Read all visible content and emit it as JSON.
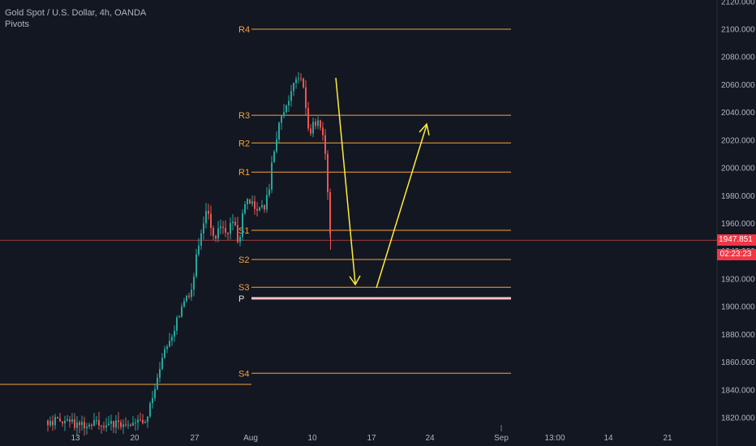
{
  "legend": {
    "symbol": "Gold Spot / U.S. Dollar, 4h, OANDA",
    "indicator": "Pivots"
  },
  "price_axis": {
    "ticks": [
      "2120.000",
      "2100.000",
      "2080.000",
      "2060.000",
      "2040.000",
      "2020.000",
      "2000.000",
      "1980.000",
      "1960.000",
      "1940.000",
      "1920.000",
      "1900.000",
      "1880.000",
      "1860.000",
      "1840.000",
      "1820.000"
    ],
    "current_price": "1947.851",
    "countdown": "02:23:23",
    "tag_color": "#f23645"
  },
  "time_axis": {
    "labels": [
      "13",
      "20",
      "27",
      "Aug",
      "10",
      "17",
      "24",
      "Sep",
      "13:00",
      "14",
      "21"
    ]
  },
  "colors": {
    "up": "#26a69a",
    "down": "#ef5350",
    "pivot_line": "#f7a23b",
    "pivot_label": "#f7a23b",
    "p_line": "#ffc0cb",
    "arrow": "#ffeb3b",
    "background": "#131722"
  },
  "chart_data": {
    "type": "candlestick",
    "symbol": "XAUUSD",
    "timeframe": "4h",
    "ylim": [
      1815,
      2125
    ],
    "pivots": [
      {
        "label": "R4",
        "value": 2100
      },
      {
        "label": "R3",
        "value": 2038
      },
      {
        "label": "R2",
        "value": 2018
      },
      {
        "label": "R1",
        "value": 1997
      },
      {
        "label": "S1",
        "value": 1955
      },
      {
        "label": "S2",
        "value": 1934
      },
      {
        "label": "S3",
        "value": 1914
      },
      {
        "label": "P",
        "value": 1906
      },
      {
        "label": "S4",
        "value": 1852
      }
    ],
    "previous_period_level": 1844,
    "current_price": 1947.851,
    "price_path": [
      [
        60,
        1818
      ],
      [
        85,
        1816
      ],
      [
        110,
        1815
      ],
      [
        130,
        1816
      ],
      [
        150,
        1815
      ],
      [
        165,
        1816
      ],
      [
        175,
        1818
      ],
      [
        182,
        1822
      ],
      [
        188,
        1838
      ],
      [
        192,
        1848
      ],
      [
        197,
        1856
      ],
      [
        202,
        1866
      ],
      [
        207,
        1874
      ],
      [
        212,
        1882
      ],
      [
        217,
        1890
      ],
      [
        222,
        1896
      ],
      [
        227,
        1902
      ],
      [
        232,
        1910
      ],
      [
        237,
        1918
      ],
      [
        240,
        1932
      ],
      [
        243,
        1940
      ],
      [
        246,
        1948
      ],
      [
        249,
        1955
      ],
      [
        252,
        1968
      ],
      [
        255,
        1972
      ],
      [
        258,
        1958
      ],
      [
        261,
        1950
      ],
      [
        264,
        1946
      ],
      [
        267,
        1955
      ],
      [
        270,
        1958
      ],
      [
        273,
        1952
      ],
      [
        276,
        1960
      ],
      [
        279,
        1950
      ],
      [
        282,
        1958
      ],
      [
        285,
        1965
      ],
      [
        288,
        1960
      ],
      [
        291,
        1948
      ],
      [
        294,
        1945
      ],
      [
        297,
        1962
      ],
      [
        300,
        1970
      ],
      [
        303,
        1975
      ],
      [
        306,
        1972
      ],
      [
        309,
        1976
      ],
      [
        312,
        1970
      ],
      [
        315,
        1973
      ],
      [
        318,
        1968
      ],
      [
        321,
        1972
      ],
      [
        324,
        1970
      ],
      [
        327,
        1976
      ],
      [
        330,
        1980
      ],
      [
        333,
        1998
      ],
      [
        336,
        2010
      ],
      [
        339,
        2020
      ],
      [
        342,
        2028
      ],
      [
        345,
        2035
      ],
      [
        348,
        2040
      ],
      [
        351,
        2048
      ],
      [
        354,
        2045
      ],
      [
        357,
        2052
      ],
      [
        360,
        2058
      ],
      [
        363,
        2065
      ],
      [
        366,
        2068
      ],
      [
        369,
        2066
      ],
      [
        372,
        2060
      ],
      [
        375,
        2050
      ],
      [
        378,
        2030
      ],
      [
        381,
        2024
      ],
      [
        384,
        2034
      ],
      [
        387,
        2030
      ],
      [
        390,
        2036
      ],
      [
        393,
        2032
      ],
      [
        396,
        2028
      ],
      [
        399,
        2020
      ],
      [
        402,
        1990
      ],
      [
        405,
        1958
      ],
      [
        407,
        1950
      ]
    ]
  }
}
